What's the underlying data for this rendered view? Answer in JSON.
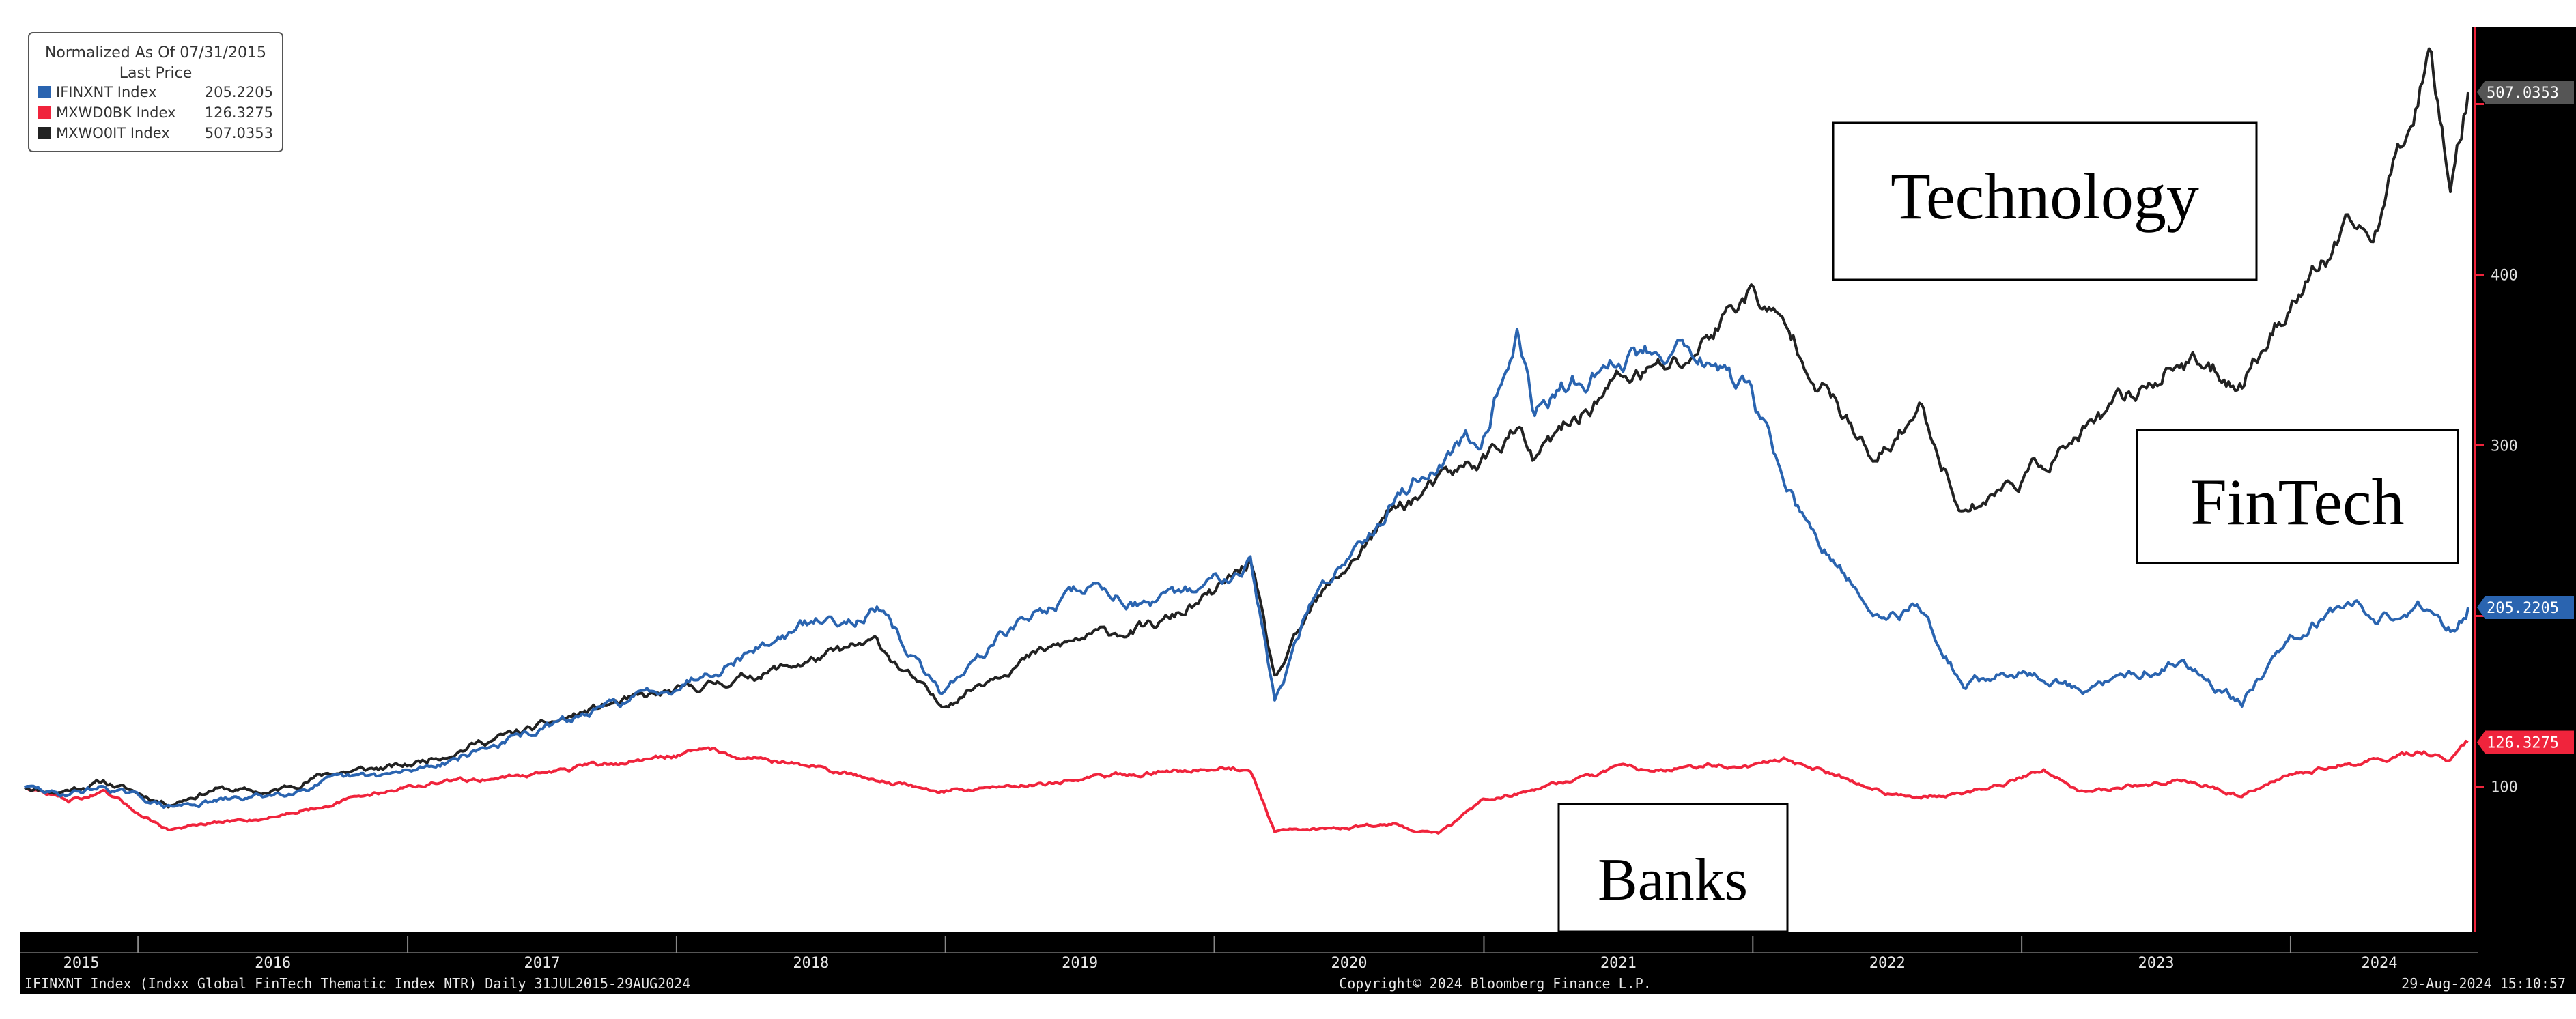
{
  "chart_data": {
    "type": "line",
    "title": "",
    "legend": {
      "header_line1": "Normalized As Of 07/31/2015",
      "header_line2": "Last Price",
      "entries": [
        {
          "label": "IFINXNT Index",
          "value": "205.2205",
          "color": "#2a64b0"
        },
        {
          "label": "MXWD0BK Index",
          "value": "126.3275",
          "color": "#f0243c"
        },
        {
          "label": "MXWO0IT Index",
          "value": "507.0353",
          "color": "#222222"
        }
      ],
      "placement": "top-left"
    },
    "x_axis": {
      "type": "date",
      "range": [
        "2015-07-31",
        "2024-08-29"
      ],
      "tick_labels": [
        "2015",
        "2016",
        "2017",
        "2018",
        "2019",
        "2020",
        "2021",
        "2022",
        "2023",
        "2024"
      ]
    },
    "y_axis": {
      "position": "right",
      "range": [
        15,
        545
      ],
      "ticks": [
        100,
        200,
        300,
        400,
        500
      ],
      "tick_labels": [
        "100",
        "",
        "300",
        "400",
        ""
      ]
    },
    "last_value_tags": [
      {
        "series": "MXWO0IT Index",
        "text": "507.0353",
        "color": "#555555"
      },
      {
        "series": "IFINXNT Index",
        "text": "205.2205",
        "color": "#2a64b0"
      },
      {
        "series": "MXWD0BK Index",
        "text": "126.3275",
        "color": "#f0243c"
      }
    ],
    "series": [
      {
        "name": "MXWO0IT Index",
        "color": "#222222",
        "points": [
          [
            "2015-07-31",
            100
          ],
          [
            "2015-09-15",
            97
          ],
          [
            "2015-11-15",
            103
          ],
          [
            "2016-02-11",
            90
          ],
          [
            "2016-04-15",
            99
          ],
          [
            "2016-06-27",
            96
          ],
          [
            "2016-09-15",
            108
          ],
          [
            "2016-12-31",
            112
          ],
          [
            "2017-04-01",
            125
          ],
          [
            "2017-07-01",
            135
          ],
          [
            "2017-10-01",
            148
          ],
          [
            "2017-12-31",
            155
          ],
          [
            "2018-03-15",
            162
          ],
          [
            "2018-06-15",
            172
          ],
          [
            "2018-09-30",
            184
          ],
          [
            "2018-12-24",
            147
          ],
          [
            "2019-03-31",
            172
          ],
          [
            "2019-07-15",
            188
          ],
          [
            "2019-10-15",
            194
          ],
          [
            "2019-12-31",
            212
          ],
          [
            "2020-02-19",
            232
          ],
          [
            "2020-03-23",
            162
          ],
          [
            "2020-05-15",
            205
          ],
          [
            "2020-08-31",
            262
          ],
          [
            "2020-12-31",
            292
          ],
          [
            "2021-02-15",
            310
          ],
          [
            "2021-03-08",
            290
          ],
          [
            "2021-06-30",
            338
          ],
          [
            "2021-09-30",
            348
          ],
          [
            "2021-12-27",
            392
          ],
          [
            "2022-03-15",
            352
          ],
          [
            "2022-06-16",
            287
          ],
          [
            "2022-08-15",
            322
          ],
          [
            "2022-10-14",
            262
          ],
          [
            "2022-12-28",
            280
          ],
          [
            "2023-03-31",
            308
          ],
          [
            "2023-07-31",
            350
          ],
          [
            "2023-10-27",
            338
          ],
          [
            "2023-12-31",
            385
          ],
          [
            "2024-03-31",
            428
          ],
          [
            "2024-04-19",
            418
          ],
          [
            "2024-07-10",
            535
          ],
          [
            "2024-08-05",
            458
          ],
          [
            "2024-08-29",
            507
          ]
        ]
      },
      {
        "name": "IFINXNT Index",
        "color": "#2a64b0",
        "points": [
          [
            "2015-07-31",
            100
          ],
          [
            "2015-09-15",
            95
          ],
          [
            "2015-11-15",
            100
          ],
          [
            "2016-02-11",
            88
          ],
          [
            "2016-06-27",
            95
          ],
          [
            "2016-09-15",
            103
          ],
          [
            "2016-12-31",
            108
          ],
          [
            "2017-06-30",
            133
          ],
          [
            "2017-12-31",
            160
          ],
          [
            "2018-06-30",
            195
          ],
          [
            "2018-09-30",
            203
          ],
          [
            "2018-12-24",
            155
          ],
          [
            "2019-03-31",
            193
          ],
          [
            "2019-07-15",
            218
          ],
          [
            "2019-10-15",
            205
          ],
          [
            "2019-12-31",
            220
          ],
          [
            "2020-02-19",
            235
          ],
          [
            "2020-03-23",
            150
          ],
          [
            "2020-05-15",
            210
          ],
          [
            "2020-08-31",
            270
          ],
          [
            "2020-12-31",
            310
          ],
          [
            "2021-02-15",
            370
          ],
          [
            "2021-03-08",
            320
          ],
          [
            "2021-06-30",
            350
          ],
          [
            "2021-09-30",
            362
          ],
          [
            "2021-12-27",
            330
          ],
          [
            "2022-03-15",
            250
          ],
          [
            "2022-06-16",
            200
          ],
          [
            "2022-08-15",
            205
          ],
          [
            "2022-10-14",
            160
          ],
          [
            "2022-12-28",
            168
          ],
          [
            "2023-03-31",
            155
          ],
          [
            "2023-07-31",
            175
          ],
          [
            "2023-10-27",
            150
          ],
          [
            "2023-12-31",
            190
          ],
          [
            "2024-03-31",
            210
          ],
          [
            "2024-04-19",
            198
          ],
          [
            "2024-07-10",
            205
          ],
          [
            "2024-08-05",
            194
          ],
          [
            "2024-08-29",
            205
          ]
        ]
      },
      {
        "name": "MXWD0BK Index",
        "color": "#f0243c",
        "points": [
          [
            "2015-07-31",
            100
          ],
          [
            "2015-09-29",
            92
          ],
          [
            "2015-11-15",
            96
          ],
          [
            "2016-02-11",
            75
          ],
          [
            "2016-06-27",
            82
          ],
          [
            "2016-09-15",
            90
          ],
          [
            "2016-12-31",
            100
          ],
          [
            "2017-06-30",
            108
          ],
          [
            "2017-12-31",
            118
          ],
          [
            "2018-01-26",
            123
          ],
          [
            "2018-06-30",
            112
          ],
          [
            "2018-12-24",
            97
          ],
          [
            "2019-06-30",
            104
          ],
          [
            "2019-12-31",
            112
          ],
          [
            "2020-02-19",
            110
          ],
          [
            "2020-03-23",
            73
          ],
          [
            "2020-05-15",
            75
          ],
          [
            "2020-08-31",
            78
          ],
          [
            "2020-10-31",
            72
          ],
          [
            "2020-12-31",
            92
          ],
          [
            "2021-06-30",
            110
          ],
          [
            "2021-12-31",
            113
          ],
          [
            "2022-02-15",
            116
          ],
          [
            "2022-07-15",
            95
          ],
          [
            "2022-10-14",
            95
          ],
          [
            "2023-01-31",
            110
          ],
          [
            "2023-03-20",
            96
          ],
          [
            "2023-07-31",
            104
          ],
          [
            "2023-10-27",
            95
          ],
          [
            "2023-12-31",
            108
          ],
          [
            "2024-06-30",
            120
          ],
          [
            "2024-08-05",
            115
          ],
          [
            "2024-08-29",
            126
          ]
        ]
      }
    ],
    "annotations": [
      {
        "text": "Technology",
        "anchor": "upper-right"
      },
      {
        "text": "FinTech",
        "anchor": "right"
      },
      {
        "text": "Banks",
        "anchor": "bottom-center"
      }
    ],
    "footer": {
      "left": "IFINXNT Index (Indxx Global FinTech Thematic Index NTR)  Daily 31JUL2015-29AUG2024",
      "center": "Copyright© 2024 Bloomberg Finance L.P.",
      "right": "29-Aug-2024 15:10:57"
    },
    "grid": false,
    "background": "#ffffff",
    "axis_band_color": "#000000"
  }
}
